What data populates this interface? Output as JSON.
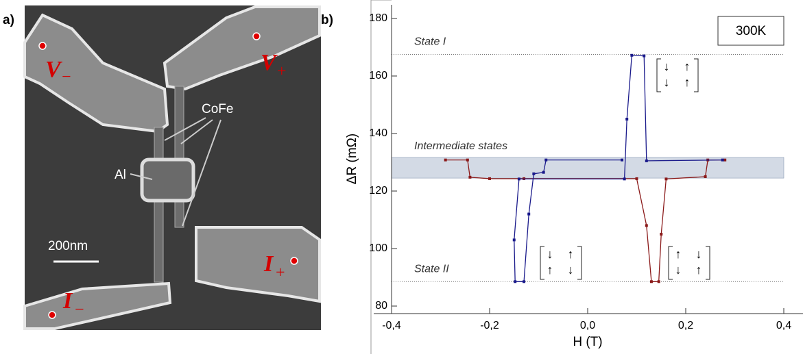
{
  "panel_a": {
    "label": "a)",
    "contacts": [
      {
        "letter": "V",
        "sub": "−"
      },
      {
        "letter": "V",
        "sub": "+"
      },
      {
        "letter": "I",
        "sub": "+"
      },
      {
        "letter": "I",
        "sub": "−"
      }
    ],
    "material_labels": [
      "CoFe",
      "Al"
    ],
    "scale_bar": "200nm"
  },
  "chart_data": {
    "type": "line",
    "panel_label": "b)",
    "x_label": "H (T)",
    "y_label": "ΔR (mΩ)",
    "box_label": "300K",
    "xlim": [
      -0.4,
      0.4
    ],
    "xticks": [
      {
        "value": -0.4,
        "label": "-0,4"
      },
      {
        "value": -0.2,
        "label": "-0,2"
      },
      {
        "value": 0,
        "label": "0,0"
      },
      {
        "value": 0.2,
        "label": "0,2"
      },
      {
        "value": 0.4,
        "label": "0,4"
      }
    ],
    "ylim": [
      80,
      180
    ],
    "yticks": [
      80,
      100,
      120,
      140,
      160,
      180
    ],
    "reference_lines": [
      {
        "label": "State I",
        "value": 167.5
      },
      {
        "label": "State II",
        "value": 88.5
      }
    ],
    "band": {
      "label": "Intermediate states",
      "range": [
        124.5,
        131.7
      ],
      "color": "#d3dae5"
    },
    "spin_states": [
      {
        "rows": [
          [
            "↓",
            "↑"
          ],
          [
            "↓",
            "↑"
          ]
        ]
      },
      {
        "rows": [
          [
            "↓",
            "↑"
          ],
          [
            "↑",
            "↓"
          ]
        ]
      },
      {
        "rows": [
          [
            "↑",
            "↓"
          ],
          [
            "↓",
            "↑"
          ]
        ]
      }
    ],
    "series": [
      {
        "color": "#8b1a1a",
        "x": [
          -0.29,
          -0.245,
          -0.24,
          -0.2,
          -0.13,
          0.1,
          0.12,
          0.13,
          0.145,
          0.15,
          0.16,
          0.24,
          0.245,
          0.28
        ],
        "values": [
          130.8,
          130.8,
          124.8,
          124.3,
          124.3,
          124.3,
          108,
          88.5,
          88.5,
          105,
          124.2,
          125,
          130.8,
          130.8
        ]
      },
      {
        "color": "#1a1a8b",
        "x": [
          0.275,
          0.12,
          0.115,
          0.09,
          0.08,
          0.075,
          -0.14,
          -0.15,
          -0.148,
          -0.13,
          -0.12,
          -0.11,
          -0.09,
          -0.085,
          0.07
        ],
        "values": [
          130.8,
          130.5,
          167,
          167.2,
          145,
          124.2,
          124.2,
          103,
          88.5,
          88.5,
          112,
          126,
          126.5,
          130.8,
          130.8
        ]
      }
    ]
  }
}
